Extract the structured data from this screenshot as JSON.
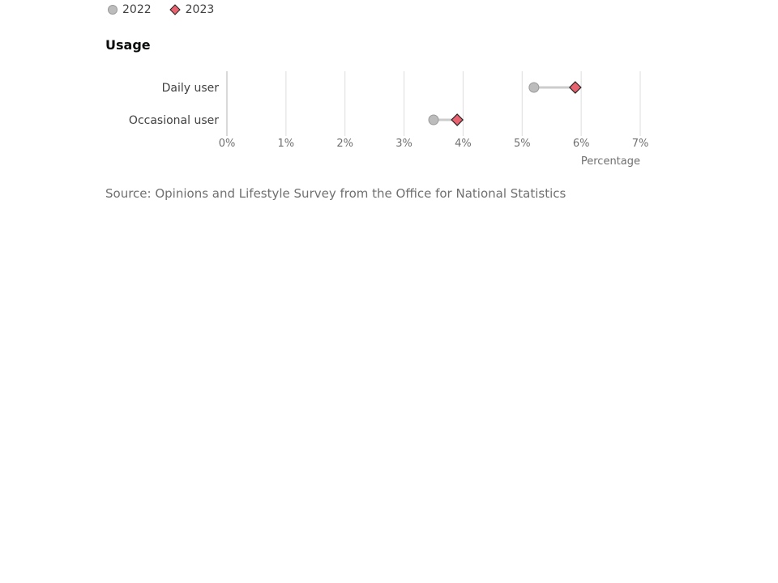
{
  "legend": [
    {
      "label": "2022",
      "marker": "circle",
      "color": "#bcbcbc",
      "stroke": "#9a9a9a"
    },
    {
      "label": "2023",
      "marker": "diamond",
      "color": "#e8636f",
      "stroke": "#222222"
    }
  ],
  "chart": {
    "title": "Usage"
  },
  "source": "Source: Opinions and Lifestyle Survey from the Office for National Statistics",
  "chart_data": {
    "type": "dumbbell",
    "title": "Usage",
    "xlabel": "Percentage",
    "ylabel": "",
    "xlim": [
      0,
      7
    ],
    "x_ticks": [
      "0%",
      "1%",
      "2%",
      "3%",
      "4%",
      "5%",
      "6%",
      "7%"
    ],
    "categories": [
      "Daily user",
      "Occasional user"
    ],
    "series": [
      {
        "name": "2022",
        "values": [
          5.2,
          3.5
        ]
      },
      {
        "name": "2023",
        "values": [
          5.9,
          3.9
        ]
      }
    ],
    "grid": true,
    "legend_position": "top-left",
    "connector_color": "#cccccc"
  }
}
